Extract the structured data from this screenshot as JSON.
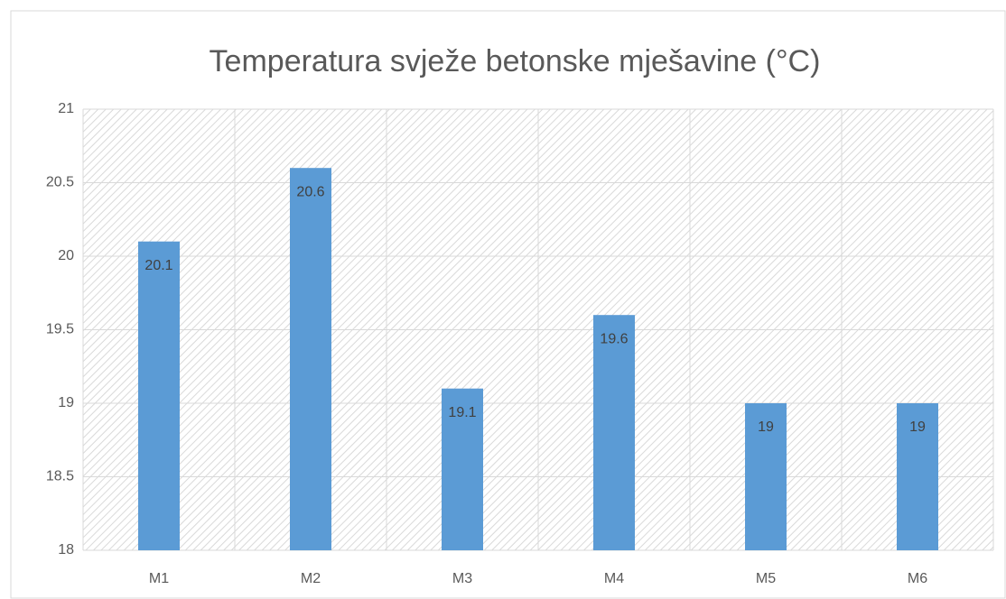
{
  "chart_data": {
    "type": "bar",
    "title": "Temperatura svježe betonske mješavine (°C)",
    "categories": [
      "M1",
      "M2",
      "M3",
      "M4",
      "M5",
      "M6"
    ],
    "values": [
      20.1,
      20.6,
      19.1,
      19.6,
      19,
      19
    ],
    "color": "#5b9bd5",
    "ylim": [
      18,
      21
    ],
    "yticks": [
      18,
      18.5,
      19,
      19.5,
      20,
      20.5,
      21
    ],
    "grid": true
  }
}
